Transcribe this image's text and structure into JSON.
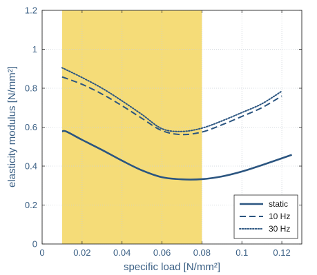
{
  "chart_data": {
    "type": "line",
    "xlabel": "specific load [N/mm²]",
    "ylabel": "elasticity modulus [N/mm²]",
    "xlim": [
      0,
      0.13
    ],
    "ylim": [
      0,
      1.2
    ],
    "x_ticks": [
      0,
      0.02,
      0.04,
      0.06,
      0.08,
      0.1,
      0.12
    ],
    "x_tick_labels": [
      "0",
      "0.02",
      "0.04",
      "0.06",
      "0.08",
      "0.1",
      "0.12"
    ],
    "y_ticks": [
      0,
      0.2,
      0.4,
      0.6,
      0.8,
      1.0,
      1.2
    ],
    "y_tick_labels": [
      "0",
      "0.2",
      "0.4",
      "0.6",
      "0.8",
      "1",
      "1.2"
    ],
    "grid": true,
    "legend_position": "bottom-right",
    "highlight_range": {
      "x": [
        0.01,
        0.08
      ],
      "color": "#f5dc78"
    },
    "series": [
      {
        "name": "static",
        "style": "solid",
        "color": "#2b5580",
        "x": [
          0.01,
          0.012,
          0.02,
          0.03,
          0.04,
          0.05,
          0.06,
          0.07,
          0.08,
          0.09,
          0.1,
          0.11,
          0.125
        ],
        "y": [
          0.578,
          0.578,
          0.535,
          0.483,
          0.428,
          0.378,
          0.343,
          0.332,
          0.333,
          0.347,
          0.372,
          0.405,
          0.458
        ]
      },
      {
        "name": "10 Hz",
        "style": "dashed",
        "color": "#2b5580",
        "x": [
          0.01,
          0.02,
          0.03,
          0.04,
          0.05,
          0.06,
          0.07,
          0.08,
          0.09,
          0.1,
          0.11,
          0.12
        ],
        "y": [
          0.858,
          0.82,
          0.77,
          0.71,
          0.645,
          0.582,
          0.562,
          0.575,
          0.612,
          0.655,
          0.7,
          0.76
        ]
      },
      {
        "name": "30 Hz",
        "style": "dotted",
        "color": "#2b5580",
        "x": [
          0.01,
          0.02,
          0.03,
          0.04,
          0.05,
          0.06,
          0.07,
          0.08,
          0.09,
          0.1,
          0.11,
          0.12
        ],
        "y": [
          0.905,
          0.855,
          0.8,
          0.735,
          0.665,
          0.592,
          0.578,
          0.595,
          0.632,
          0.675,
          0.72,
          0.785
        ]
      }
    ]
  }
}
